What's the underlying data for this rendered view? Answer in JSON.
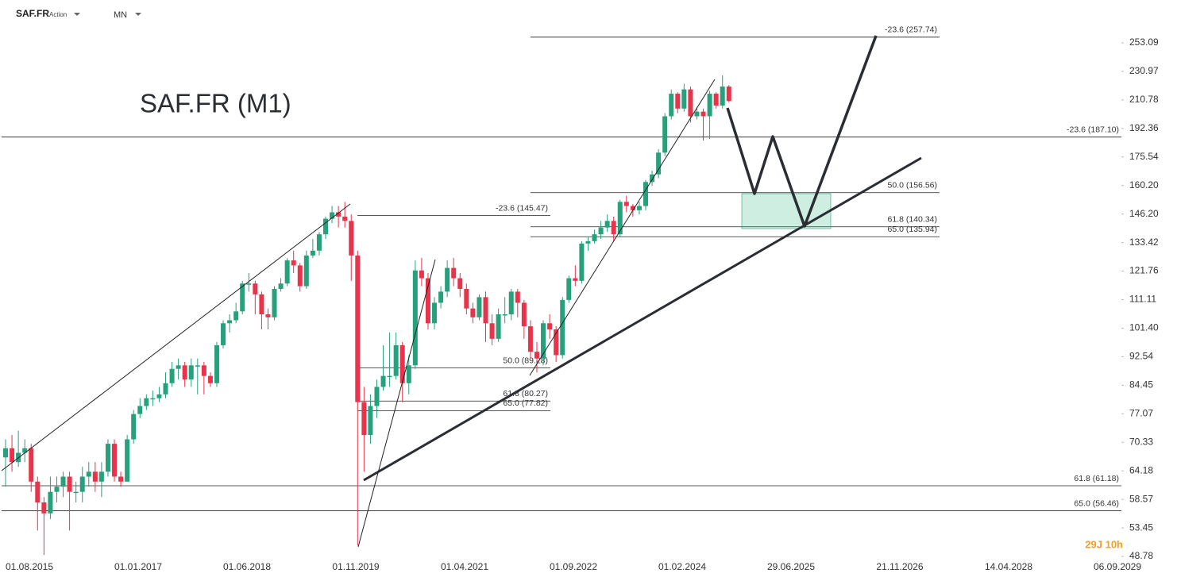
{
  "header": {
    "symbol": "SAF.FR",
    "asset_type": "Action",
    "period": "MN"
  },
  "chart_data": {
    "type": "candlestick",
    "title": "SAF.FR (M1)",
    "yscale": "log",
    "ylim": [
      48.29,
      269.0
    ],
    "yticks": [
      {
        "value": 253.09,
        "label": "253.09"
      },
      230.97,
      210.78,
      192.36,
      175.54,
      {
        "value": 160.2,
        "label": "160.20"
      },
      {
        "value": 146.2,
        "label": "146.20"
      },
      133.42,
      121.76,
      111.11,
      {
        "value": 101.4,
        "label": "101.40"
      },
      92.54,
      84.45,
      77.07,
      70.33,
      64.18,
      58.57,
      53.45,
      48.78
    ],
    "xtick_labels": [
      "01.08.2015",
      "01.01.2017",
      "01.06.2018",
      "01.11.2019",
      "01.04.2021",
      "01.09.2022",
      "01.02.2024",
      "29.06.2025",
      "21.11.2026",
      "14.04.2028",
      "06.09.2029"
    ],
    "up_color": "#26a17b",
    "down_color": "#e8334a",
    "open": [
      67,
      69,
      66,
      68,
      69,
      62,
      58,
      56,
      60,
      61,
      63,
      60,
      60,
      63,
      64,
      62,
      64,
      70,
      63,
      62,
      71,
      77,
      79,
      81,
      81,
      82,
      85,
      89,
      90,
      86,
      90,
      90,
      87,
      85,
      96,
      103,
      104,
      107,
      117,
      117,
      113,
      106,
      105,
      115,
      117,
      126,
      124,
      116,
      128,
      130,
      137,
      144,
      147,
      145,
      143,
      128,
      80,
      72,
      79,
      84,
      87,
      87,
      96,
      85,
      90,
      122,
      119,
      103,
      110,
      114,
      123,
      119,
      115,
      108,
      105,
      112,
      103,
      98,
      106,
      106,
      114,
      110,
      102,
      94,
      92,
      103,
      101,
      93,
      111,
      119,
      118,
      133,
      134,
      137,
      140,
      143,
      137,
      152,
      150,
      148,
      150,
      162,
      166,
      178,
      200,
      215,
      205,
      218,
      200,
      203,
      200,
      215,
      207,
      220
    ],
    "high": [
      71,
      72,
      73,
      71,
      70,
      63,
      59,
      63,
      63,
      64,
      64,
      62,
      65,
      66,
      66,
      66,
      71,
      71,
      64,
      72,
      78,
      81,
      82,
      83,
      84,
      88,
      91,
      92,
      91,
      92,
      92,
      91,
      88,
      97,
      104,
      106,
      110,
      118,
      121,
      118,
      114,
      108,
      116,
      119,
      127,
      130,
      125,
      130,
      135,
      138,
      145,
      150,
      150,
      152,
      146,
      130,
      84,
      82,
      86,
      96,
      100,
      100,
      97,
      93,
      126,
      127,
      121,
      112,
      116,
      126,
      127,
      121,
      117,
      110,
      113,
      114,
      106,
      108,
      112,
      115,
      115,
      111,
      104,
      97,
      104,
      106,
      102,
      112,
      120,
      124,
      134,
      136,
      139,
      143,
      146,
      145,
      153,
      155,
      151,
      152,
      163,
      168,
      180,
      202,
      218,
      216,
      222,
      220,
      206,
      205,
      217,
      216,
      228,
      221
    ],
    "low": [
      61,
      64,
      65,
      66,
      60,
      53,
      49,
      55,
      58,
      59,
      53,
      58,
      58,
      61,
      60,
      59,
      63,
      62,
      61,
      62,
      70,
      76,
      78,
      79,
      80,
      81,
      84,
      86,
      84,
      84,
      82,
      82,
      84,
      84,
      95,
      100,
      103,
      106,
      114,
      106,
      101,
      101,
      104,
      114,
      116,
      121,
      114,
      115,
      127,
      128,
      135,
      142,
      140,
      140,
      118,
      50.5,
      64,
      70,
      76,
      83,
      84,
      86,
      80,
      82,
      89,
      116,
      101,
      101,
      108,
      112,
      116,
      112,
      106,
      103,
      104,
      97,
      96,
      97,
      103,
      104,
      105,
      98,
      92,
      88,
      90,
      98,
      91,
      92,
      110,
      116,
      117,
      130,
      133,
      135,
      138,
      134,
      136,
      147,
      145,
      146,
      148,
      160,
      164,
      176,
      198,
      202,
      203,
      196,
      198,
      185,
      186,
      205,
      205,
      209
    ],
    "close": [
      69,
      66,
      68,
      69,
      62,
      58,
      56,
      60,
      61,
      63,
      60,
      60,
      63,
      64,
      62,
      64,
      70,
      63,
      62,
      71,
      77,
      79,
      81,
      81,
      82,
      85,
      89,
      90,
      86,
      90,
      90,
      87,
      85,
      96,
      103,
      104,
      107,
      117,
      117,
      113,
      106,
      105,
      115,
      117,
      126,
      124,
      116,
      128,
      130,
      137,
      144,
      147,
      145,
      143,
      128,
      80,
      72,
      79,
      84,
      87,
      87,
      96,
      85,
      90,
      122,
      119,
      103,
      110,
      114,
      123,
      119,
      115,
      108,
      105,
      112,
      103,
      98,
      106,
      106,
      114,
      110,
      102,
      94,
      92,
      103,
      101,
      93,
      111,
      119,
      118,
      133,
      134,
      137,
      140,
      143,
      137,
      152,
      150,
      148,
      150,
      162,
      166,
      178,
      200,
      215,
      205,
      218,
      200,
      203,
      200,
      215,
      207,
      220,
      210
    ],
    "fib_levels": [
      {
        "label": "-23.6 (257.74)",
        "value": 257.74
      },
      {
        "label": "-23.6 (187.10)",
        "value": 187.1
      },
      {
        "label": "-23.6 (145.47)",
        "value": 145.47
      },
      {
        "label": "50.0 (156.56)",
        "value": 156.56
      },
      {
        "label": "61.8 (140.34)",
        "value": 140.34
      },
      {
        "label": "65.0 (135.94)",
        "value": 135.94
      },
      {
        "label": "50.0 (89.28)",
        "value": 89.28
      },
      {
        "label": "61.8 (80.27)",
        "value": 80.27
      },
      {
        "label": "65.0 (77.82)",
        "value": 77.82
      },
      {
        "label": "61.8 (61.18)",
        "value": 61.18
      },
      {
        "label": "65.0 (56.46)",
        "value": 56.46
      }
    ],
    "countdown": "29J 10h"
  }
}
